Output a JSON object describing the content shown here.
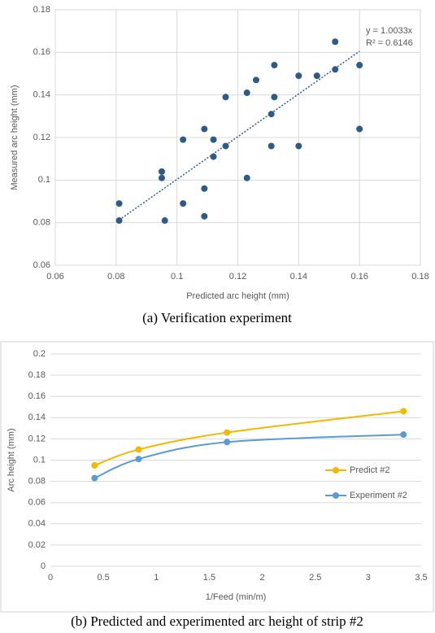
{
  "chart_data": [
    {
      "type": "scatter",
      "caption": "(a)  Verification experiment",
      "x_label": "Predicted arc height (mm)",
      "y_label": "Measured arc height (mm)",
      "x": [
        0.081,
        0.081,
        0.095,
        0.095,
        0.096,
        0.102,
        0.102,
        0.109,
        0.109,
        0.109,
        0.112,
        0.112,
        0.116,
        0.116,
        0.123,
        0.123,
        0.126,
        0.131,
        0.131,
        0.132,
        0.132,
        0.14,
        0.14,
        0.146,
        0.152,
        0.152,
        0.16,
        0.16
      ],
      "values": [
        0.089,
        0.081,
        0.104,
        0.101,
        0.081,
        0.089,
        0.119,
        0.124,
        0.096,
        0.083,
        0.119,
        0.111,
        0.139,
        0.116,
        0.141,
        0.101,
        0.147,
        0.131,
        0.116,
        0.154,
        0.139,
        0.149,
        0.116,
        0.149,
        0.152,
        0.165,
        0.154,
        0.124
      ],
      "color": "#2e5a87",
      "trendline_slope": 1.0033,
      "annotations": [
        "y = 1.0033x",
        "R² = 0.6146"
      ],
      "xlim": [
        0.06,
        0.18
      ],
      "xticks": [
        0.06,
        0.08,
        0.1,
        0.12,
        0.14,
        0.16,
        0.18
      ],
      "ylim": [
        0.06,
        0.18
      ],
      "yticks": [
        0.06,
        0.08,
        0.1,
        0.12,
        0.14,
        0.16,
        0.18
      ],
      "grid": "both"
    },
    {
      "type": "line",
      "caption": "(b)  Predicted and experimented arc height of strip #2",
      "x_label": "1/Feed (min/m)",
      "y_label": "Arc height (mm)",
      "x": [
        0.417,
        0.833,
        1.667,
        3.333
      ],
      "series": [
        {
          "name": "Predict #2",
          "color": "#f5b800",
          "values": [
            0.095,
            0.11,
            0.126,
            0.146
          ]
        },
        {
          "name": "Experiment #2",
          "color": "#5b9bd5",
          "values": [
            0.083,
            0.101,
            0.117,
            0.124
          ]
        }
      ],
      "xlim": [
        0,
        3.5
      ],
      "xticks": [
        0,
        0.5,
        1,
        1.5,
        2,
        2.5,
        3,
        3.5
      ],
      "ylim": [
        0,
        0.2
      ],
      "yticks": [
        0,
        0.02,
        0.04,
        0.06,
        0.08,
        0.1,
        0.12,
        0.14,
        0.16,
        0.18,
        0.2
      ],
      "grid": "y",
      "legend": "right"
    }
  ]
}
